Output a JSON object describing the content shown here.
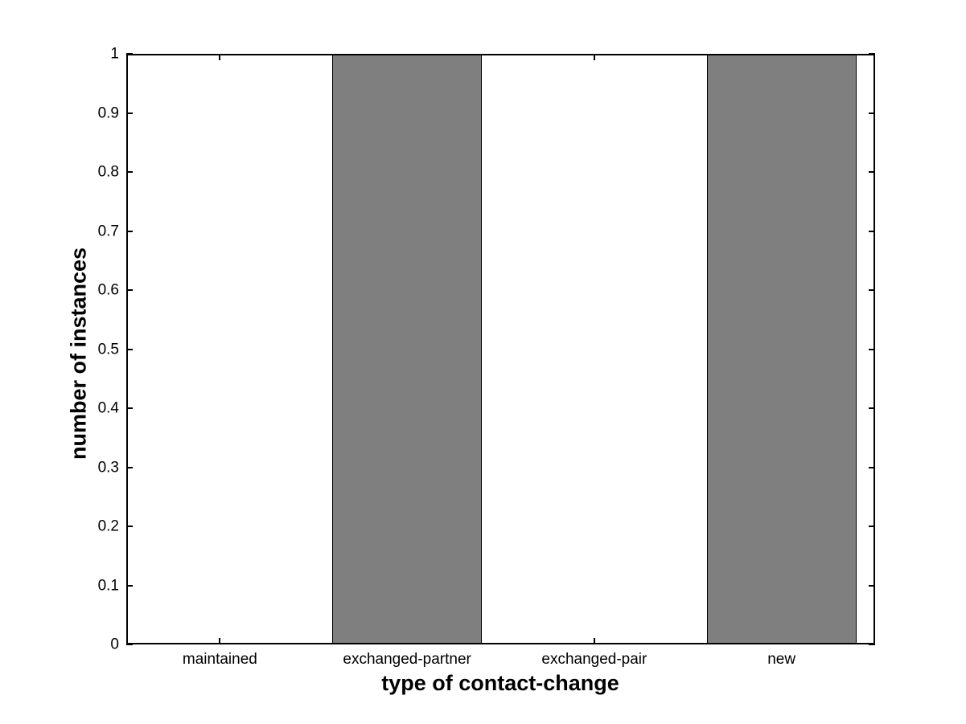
{
  "chart_data": {
    "type": "bar",
    "title": "",
    "xlabel": "type of contact-change",
    "ylabel": "number of instances",
    "categories": [
      "maintained",
      "exchanged-partner",
      "exchanged-pair",
      "new"
    ],
    "values": [
      0,
      1,
      0,
      1
    ],
    "ylim": [
      0,
      1
    ],
    "yticks": [
      0,
      0.1,
      0.2,
      0.3,
      0.4,
      0.5,
      0.6,
      0.7,
      0.8,
      0.9,
      1
    ],
    "ytick_labels": [
      "0",
      "0.1",
      "0.2",
      "0.3",
      "0.4",
      "0.5",
      "0.6",
      "0.7",
      "0.8",
      "0.9",
      "1"
    ],
    "bar_width_fraction": 0.8,
    "grid": false,
    "legend": false,
    "tick_style": "inward, mirrored on top and right axes",
    "colors": {
      "bar_fill": "#7f7f7f",
      "bar_edge": "#000000",
      "axis": "#000000",
      "background": "#ffffff",
      "text": "#000000"
    }
  }
}
